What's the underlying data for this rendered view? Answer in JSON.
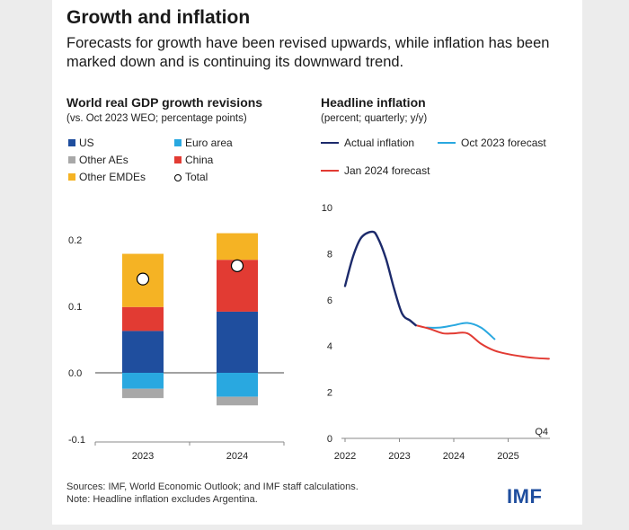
{
  "title": "Growth and inflation",
  "subtitle": "Forecasts for growth have been revised upwards, while inflation has been marked down and is continuing its downward trend.",
  "colors": {
    "us": "#1f4e9e",
    "euro": "#29a8e0",
    "other_aes": "#a8a8a8",
    "china": "#e23b33",
    "other_emdes": "#f5b324",
    "actual": "#1c2a6b",
    "oct": "#29a8e0",
    "jan": "#e23b33"
  },
  "legend": {
    "us": "US",
    "euro": "Euro area",
    "other_aes": "Other AEs",
    "china": "China",
    "other_emdes": "Other EMDEs",
    "total": "Total",
    "actual": "Actual inflation",
    "oct": "Oct 2023 forecast",
    "jan": "Jan 2024 forecast"
  },
  "footer": {
    "sources": "Sources: IMF, World Economic Outlook; and IMF staff calculations.",
    "note": "Note: Headline inflation excludes Argentina.",
    "logo": "IMF"
  },
  "chart_data": [
    {
      "type": "bar",
      "title": "World real GDP growth revisions",
      "subtitle": "(vs. Oct 2023 WEO; percentage points)",
      "categories": [
        "2023",
        "2024"
      ],
      "ylim": [
        -0.1,
        0.2
      ],
      "yticks": [
        "0.2",
        "0.1",
        "0.0",
        "-0.1"
      ],
      "ytick_values": [
        0.2,
        0.1,
        0.0,
        -0.1
      ],
      "series": [
        {
          "name": "US",
          "key": "us",
          "values": [
            0.063,
            0.092
          ]
        },
        {
          "name": "China",
          "key": "china",
          "values": [
            0.036,
            0.078
          ]
        },
        {
          "name": "Other EMDEs",
          "key": "other_emdes",
          "values": [
            0.08,
            0.04
          ]
        },
        {
          "name": "Euro area",
          "key": "euro",
          "values": [
            -0.024,
            -0.036
          ]
        },
        {
          "name": "Other AEs",
          "key": "other_aes",
          "values": [
            -0.014,
            -0.013
          ]
        }
      ],
      "total": {
        "name": "Total",
        "values": [
          0.141,
          0.161
        ]
      }
    },
    {
      "type": "line",
      "title": "Headline inflation",
      "subtitle": "(percent; quarterly; y/y)",
      "ylim": [
        0,
        10
      ],
      "yticks": [
        "10",
        "8",
        "6",
        "4",
        "2",
        "0"
      ],
      "ytick_values": [
        10,
        8,
        6,
        4,
        2,
        0
      ],
      "xticks": [
        "2022",
        "2023",
        "2024",
        "2025"
      ],
      "xtick_values": [
        2022,
        2023,
        2024,
        2025
      ],
      "annotation": "Q4",
      "series": [
        {
          "name": "Actual inflation",
          "key": "actual",
          "x": [
            2022.0,
            2022.15,
            2022.3,
            2022.5,
            2022.6,
            2022.75,
            2022.9,
            2023.05,
            2023.2,
            2023.3
          ],
          "y": [
            6.6,
            7.9,
            8.7,
            8.95,
            8.7,
            7.8,
            6.5,
            5.4,
            5.1,
            4.9
          ]
        },
        {
          "name": "Oct 2023 forecast",
          "key": "oct",
          "x": [
            2023.5,
            2023.75,
            2024.0,
            2024.25,
            2024.5,
            2024.75
          ],
          "y": [
            4.8,
            4.8,
            4.9,
            5.0,
            4.8,
            4.3
          ]
        },
        {
          "name": "Jan 2024 forecast",
          "key": "jan",
          "x": [
            2023.3,
            2023.55,
            2023.8,
            2024.0,
            2024.25,
            2024.5,
            2024.75,
            2025.0,
            2025.25,
            2025.5,
            2025.75
          ],
          "y": [
            4.9,
            4.75,
            4.55,
            4.55,
            4.55,
            4.1,
            3.8,
            3.65,
            3.55,
            3.48,
            3.45
          ]
        }
      ]
    }
  ]
}
